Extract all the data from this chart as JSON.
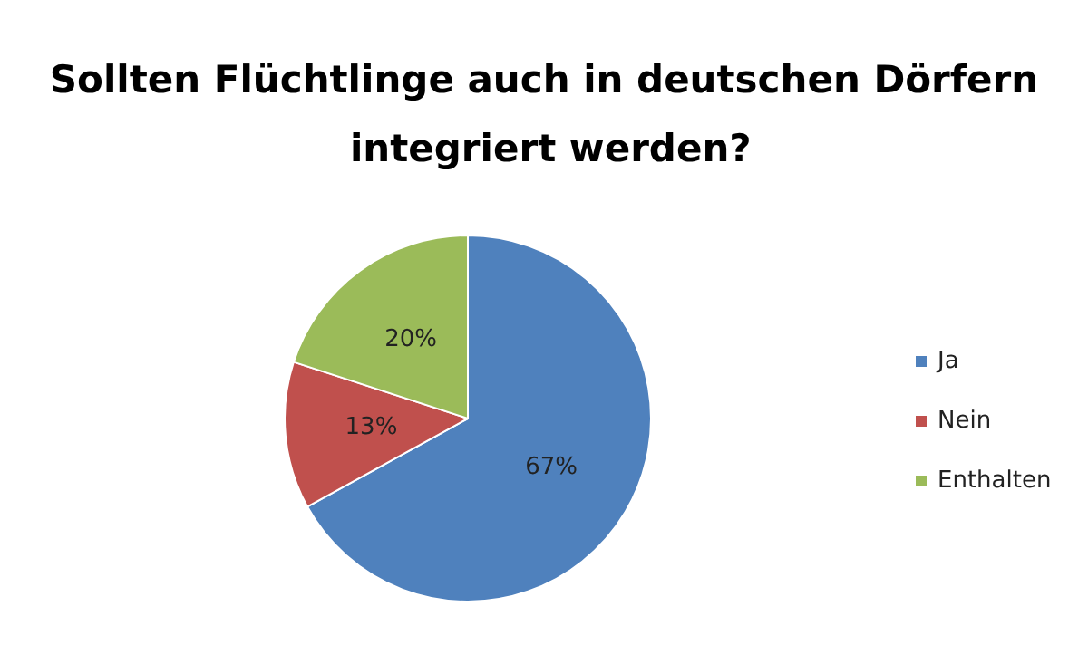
{
  "chart_data": {
    "type": "pie",
    "title": "Sollten Flüchtlinge auch in deutschen Dörfern integriert werden?",
    "categories": [
      "Ja",
      "Nein",
      "Enthalten"
    ],
    "values": [
      67,
      13,
      20
    ],
    "colors": [
      "#4f81bd",
      "#c0504d",
      "#9bbb59"
    ],
    "value_labels": [
      "67%",
      "13%",
      "20%"
    ],
    "legend": "right"
  }
}
